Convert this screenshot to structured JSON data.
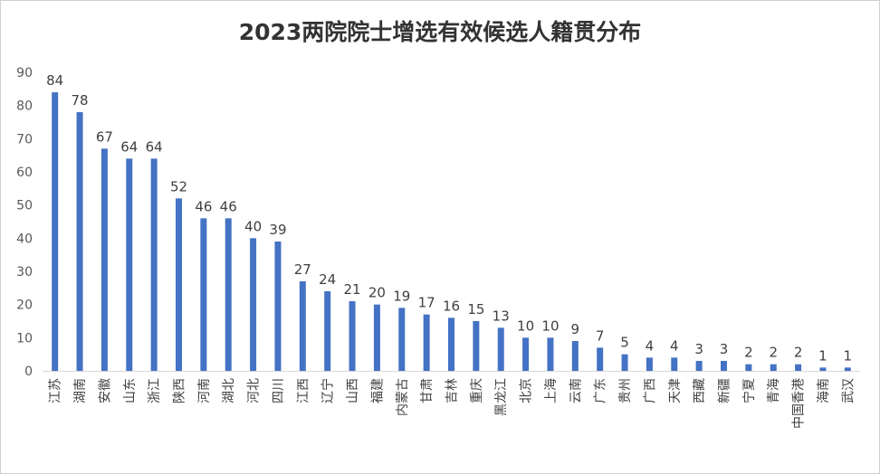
{
  "chart_data": {
    "type": "bar",
    "title": "2023两院院士增选有效候选人籍贯分布",
    "xlabel": "",
    "ylabel": "",
    "ylim": [
      0,
      90
    ],
    "yticks": [
      0,
      10,
      20,
      30,
      40,
      50,
      60,
      70,
      80,
      90
    ],
    "grid": false,
    "legend": "none",
    "bar_color": "#4472C4",
    "categories": [
      "江苏",
      "湖南",
      "安徽",
      "山东",
      "浙江",
      "陕西",
      "河南",
      "湖北",
      "河北",
      "四川",
      "江西",
      "辽宁",
      "山西",
      "福建",
      "内蒙古",
      "甘肃",
      "吉林",
      "重庆",
      "黑龙江",
      "北京",
      "上海",
      "云南",
      "广东",
      "贵州",
      "广西",
      "天津",
      "西藏",
      "新疆",
      "宁夏",
      "青海",
      "中国香港",
      "海南",
      "武汉"
    ],
    "values": [
      84,
      78,
      67,
      64,
      64,
      52,
      46,
      46,
      40,
      39,
      27,
      24,
      21,
      20,
      19,
      17,
      16,
      15,
      13,
      10,
      10,
      9,
      7,
      5,
      4,
      4,
      3,
      3,
      2,
      2,
      2,
      1,
      1
    ]
  }
}
